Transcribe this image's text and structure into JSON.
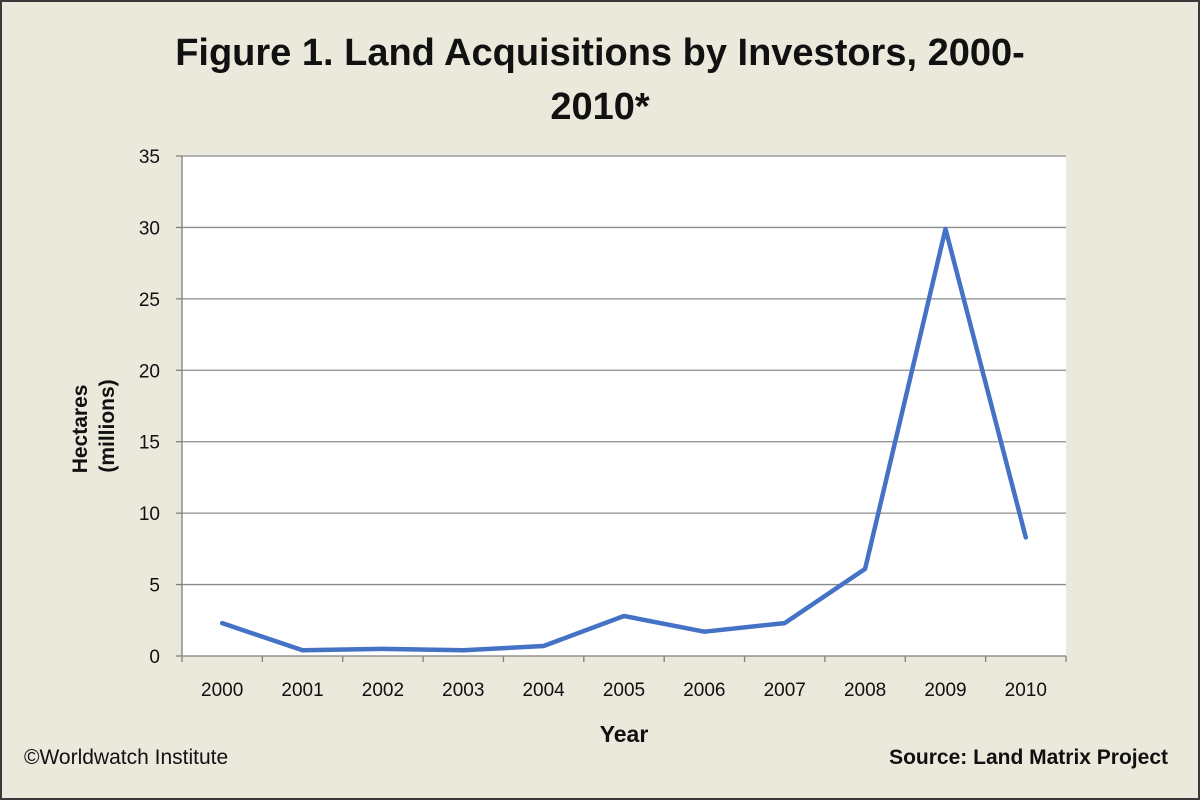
{
  "figure": {
    "title_line1": "Figure 1. Land Acquisitions by Investors, 2000-",
    "title_line2": "2010*",
    "copyright": "©Worldwatch Institute",
    "source": "Source: Land Matrix Project"
  },
  "chart_data": {
    "type": "line",
    "title": "Figure 1. Land Acquisitions by Investors, 2000-2010*",
    "xlabel": "Year",
    "ylabel_line1": "Hectares",
    "ylabel_line2": "(millions)",
    "categories": [
      "2000",
      "2001",
      "2002",
      "2003",
      "2004",
      "2005",
      "2006",
      "2007",
      "2008",
      "2009",
      "2010"
    ],
    "series": [
      {
        "values": [
          2.3,
          0.4,
          0.5,
          0.4,
          0.7,
          2.8,
          1.7,
          2.3,
          6.1,
          29.9,
          8.3
        ],
        "color": "#4472c4"
      }
    ],
    "ylim": [
      0,
      35
    ],
    "yticks": [
      "0",
      "5",
      "10",
      "15",
      "20",
      "25",
      "30",
      "35"
    ],
    "grid": true,
    "legend": "none"
  }
}
